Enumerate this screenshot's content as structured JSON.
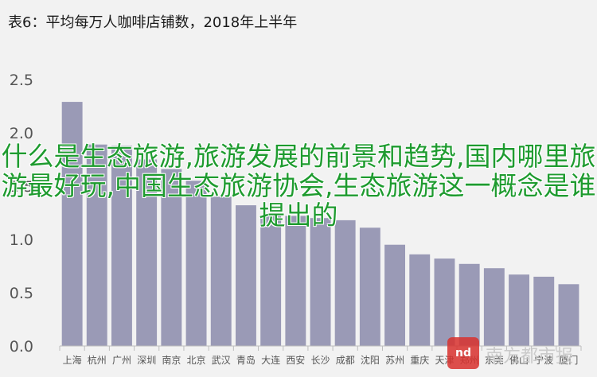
{
  "chart_data": {
    "type": "bar",
    "title": "表6：平均每万人咖啡店铺数，2018年上半年",
    "categories": [
      "上海",
      "杭州",
      "广州",
      "深圳",
      "南京",
      "北京",
      "武汉",
      "青岛",
      "大连",
      "西安",
      "长沙",
      "成都",
      "沈阳",
      "苏州",
      "重庆",
      "天津",
      "郑州",
      "东莞",
      "佛山",
      "宁波",
      "厦门"
    ],
    "values": [
      2.29,
      1.89,
      1.88,
      1.75,
      1.66,
      1.55,
      1.4,
      1.32,
      1.23,
      1.22,
      1.2,
      1.18,
      1.11,
      0.95,
      0.86,
      0.82,
      0.77,
      0.73,
      0.67,
      0.65,
      0.58
    ],
    "yticks": [
      "0.0",
      "0.5",
      "1.0",
      "1.5",
      "2.0",
      "2.5"
    ],
    "ylim": [
      0,
      2.5
    ],
    "grid": true,
    "colors": {
      "bar": "#9a9ab6",
      "axis": "#bdbdbd",
      "background": "#f2f2f2"
    }
  },
  "overlay_text": "什么是生态旅游,旅游发展的前景和趋势,国内哪里旅游最好玩,中国生态旅游协会,生态旅游这一概念是谁提出的",
  "watermark": {
    "badge": "nd",
    "text": "南方都市报"
  }
}
